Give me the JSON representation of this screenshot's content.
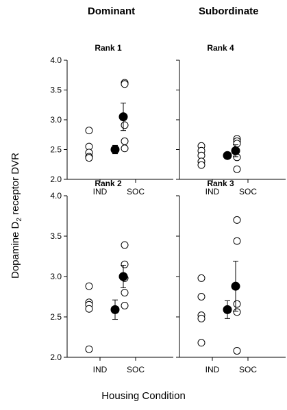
{
  "column_titles": {
    "dominant": "Dominant",
    "subordinate": "Subordinate"
  },
  "ylabel": {
    "prefix": "Dopamine D",
    "sub": "2",
    "suffix": " receptor DVR"
  },
  "xlabel": "Housing Condition",
  "chart_data": [
    {
      "type": "scatter",
      "title": "Rank 1",
      "categories": [
        "IND",
        "SOC"
      ],
      "ylim": [
        2.0,
        4.0
      ],
      "yticks": [
        "2.0",
        "2.5",
        "3.0",
        "3.5",
        "4.0"
      ],
      "show_y_tick_labels": true,
      "individuals": {
        "IND": [
          2.82,
          2.55,
          2.45,
          2.38,
          2.36
        ],
        "SOC": [
          3.62,
          3.6,
          2.91,
          2.64,
          2.52
        ]
      },
      "means": {
        "IND": {
          "mean": 2.5,
          "sem": 0.07
        },
        "SOC": {
          "mean": 3.05,
          "sem": 0.23
        }
      }
    },
    {
      "type": "scatter",
      "title": "Rank 4",
      "categories": [
        "IND",
        "SOC"
      ],
      "ylim": [
        2.0,
        4.0
      ],
      "yticks": [
        "2.0",
        "2.5",
        "3.0",
        "3.5",
        "4.0"
      ],
      "show_y_tick_labels": false,
      "individuals": {
        "IND": [
          2.56,
          2.48,
          2.4,
          2.3,
          2.24
        ],
        "SOC": [
          2.68,
          2.64,
          2.6,
          2.37,
          2.17
        ]
      },
      "means": {
        "IND": {
          "mean": 2.4,
          "sem": 0.04
        },
        "SOC": {
          "mean": 2.48,
          "sem": 0.1
        }
      }
    },
    {
      "type": "scatter",
      "title": "Rank 2",
      "categories": [
        "IND",
        "SOC"
      ],
      "ylim": [
        2.0,
        4.0
      ],
      "yticks": [
        "2.0",
        "2.5",
        "3.0",
        "3.5",
        "4.0"
      ],
      "show_y_tick_labels": true,
      "individuals": {
        "IND": [
          2.88,
          2.68,
          2.65,
          2.6,
          2.1
        ],
        "SOC": [
          3.39,
          3.15,
          2.98,
          2.8,
          2.64
        ]
      },
      "means": {
        "IND": {
          "mean": 2.59,
          "sem": 0.12
        },
        "SOC": {
          "mean": 3.0,
          "sem": 0.14
        }
      }
    },
    {
      "type": "scatter",
      "title": "Rank 3",
      "categories": [
        "IND",
        "SOC"
      ],
      "ylim": [
        2.0,
        4.0
      ],
      "yticks": [
        "2.0",
        "2.5",
        "3.0",
        "3.5",
        "4.0"
      ],
      "show_y_tick_labels": false,
      "individuals": {
        "IND": [
          2.98,
          2.75,
          2.52,
          2.48,
          2.18
        ],
        "SOC": [
          3.7,
          3.44,
          2.66,
          2.56,
          2.08
        ]
      },
      "means": {
        "IND": {
          "mean": 2.59,
          "sem": 0.11
        },
        "SOC": {
          "mean": 2.88,
          "sem": 0.31
        }
      }
    }
  ]
}
